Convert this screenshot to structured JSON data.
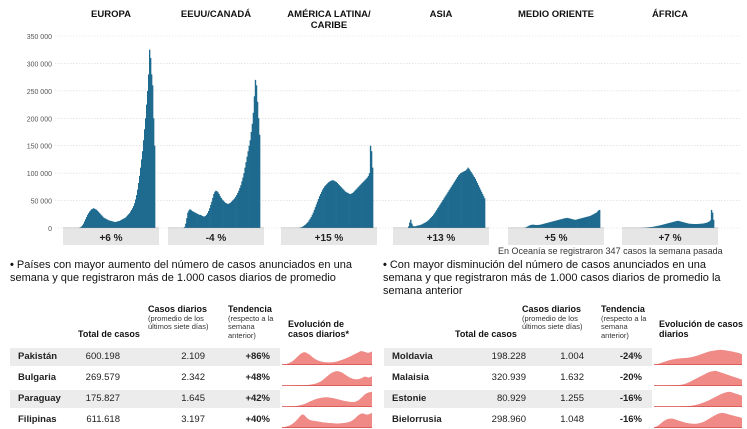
{
  "colors": {
    "region_bars": "#1f6a8f",
    "region_bg": "#f1f1f1",
    "pct_box": "#e6e6e6",
    "spark_fill": "#ef8a87",
    "spark_line": "#d94d4a",
    "row_alt": "#ececec"
  },
  "chart_data": {
    "type": "bar",
    "title": "",
    "ylim": [
      0,
      350000
    ],
    "yticks": [
      0,
      50000,
      100000,
      150000,
      200000,
      250000,
      300000,
      350000
    ],
    "ytick_labels": [
      "0",
      "50 000",
      "100 000",
      "150 000",
      "200 000",
      "250 000",
      "300 000",
      "350 000"
    ],
    "grid": true,
    "series": [
      {
        "name": "EUROPA",
        "change": "+6 %",
        "values": [
          0,
          200,
          600,
          1500,
          3000,
          5000,
          8000,
          12000,
          16000,
          20000,
          24000,
          27000,
          30000,
          32000,
          34000,
          35000,
          36000,
          35000,
          34000,
          33000,
          31000,
          29000,
          27000,
          25000,
          23000,
          21000,
          19000,
          18000,
          17000,
          16000,
          15000,
          14000,
          13500,
          13000,
          12500,
          12000,
          11500,
          11000,
          11000,
          11500,
          12000,
          12500,
          13000,
          14000,
          15000,
          16000,
          17000,
          18000,
          19000,
          21000,
          23000,
          25000,
          27000,
          30000,
          33000,
          36000,
          40000,
          45000,
          52000,
          60000,
          70000,
          82000,
          95000,
          110000,
          125000,
          140000,
          160000,
          180000,
          200000,
          225000,
          250000,
          280000,
          325000,
          310000,
          280000,
          260000,
          200000,
          150000
        ]
      },
      {
        "name": "EEUU/CANADÁ",
        "change": "-4 %",
        "values": [
          0,
          500,
          2000,
          8000,
          18000,
          28000,
          32000,
          34000,
          33000,
          31000,
          30000,
          29000,
          28000,
          27000,
          26000,
          25000,
          24000,
          24000,
          23000,
          22000,
          21000,
          21000,
          22000,
          24000,
          27000,
          31000,
          36000,
          42000,
          48000,
          55000,
          62000,
          66000,
          68000,
          67000,
          65000,
          62000,
          58000,
          55000,
          52000,
          50000,
          48000,
          46000,
          45000,
          44000,
          44000,
          45000,
          46000,
          48000,
          50000,
          52000,
          54000,
          57000,
          60000,
          64000,
          68000,
          73000,
          78000,
          85000,
          92000,
          100000,
          110000,
          120000,
          130000,
          140000,
          150000,
          160000,
          175000,
          190000,
          210000,
          240000,
          270000,
          260000,
          230000,
          200000,
          170000
        ]
      },
      {
        "name": "AMÉRICA LATINA/ CARIBE",
        "change": "+15 %",
        "values": [
          0,
          0,
          100,
          300,
          600,
          1000,
          1800,
          2800,
          4000,
          5500,
          7000,
          9000,
          11000,
          14000,
          17000,
          20000,
          24000,
          28000,
          33000,
          38000,
          43000,
          48000,
          53000,
          58000,
          62000,
          66000,
          70000,
          73000,
          76000,
          78000,
          80000,
          82000,
          84000,
          85000,
          86000,
          87000,
          87000,
          86000,
          85000,
          84000,
          82000,
          80000,
          78000,
          76000,
          74000,
          72000,
          70000,
          68000,
          66000,
          65000,
          64000,
          63000,
          62000,
          62000,
          63000,
          64000,
          66000,
          68000,
          70000,
          72000,
          74000,
          76000,
          78000,
          80000,
          82000,
          84000,
          86000,
          88000,
          90000,
          92000,
          95000,
          100000,
          150000,
          140000,
          110000
        ]
      },
      {
        "name": "ASIA",
        "change": "+13 %",
        "values": [
          0,
          3000,
          10000,
          15000,
          8000,
          4000,
          3000,
          3000,
          3500,
          4000,
          4500,
          5000,
          5500,
          6000,
          7000,
          8000,
          9000,
          10000,
          11000,
          12500,
          14000,
          16000,
          18000,
          20000,
          22000,
          24500,
          27000,
          30000,
          33000,
          36000,
          39000,
          42000,
          45000,
          48000,
          51000,
          54000,
          57000,
          60000,
          63000,
          66000,
          69000,
          72000,
          75000,
          78000,
          81000,
          84000,
          87000,
          90000,
          93000,
          96000,
          98000,
          100000,
          101000,
          102000,
          103000,
          104000,
          105000,
          107000,
          110000,
          108000,
          105000,
          102000,
          99000,
          96000,
          93000,
          90000,
          86000,
          82000,
          78000,
          74000,
          70000,
          66000,
          62000,
          58000,
          54000
        ]
      },
      {
        "name": "MEDIO ORIENTE",
        "change": "+5 %",
        "values": [
          0,
          200,
          500,
          1000,
          2000,
          3000,
          4000,
          5000,
          5500,
          6000,
          6000,
          5800,
          5600,
          5500,
          5500,
          5600,
          5800,
          6000,
          6500,
          7000,
          7500,
          8000,
          8500,
          9000,
          9500,
          10000,
          10500,
          11000,
          11500,
          12000,
          12500,
          13000,
          13500,
          14000,
          14500,
          15000,
          15500,
          16000,
          16500,
          17000,
          17500,
          18000,
          18000,
          18500,
          18000,
          17500,
          17000,
          16500,
          16000,
          15500,
          15000,
          15000,
          15500,
          16000,
          16500,
          17000,
          17500,
          18000,
          18500,
          19000,
          19500,
          20000,
          20500,
          21000,
          21500,
          22000,
          23000,
          24000,
          25000,
          26000,
          27000,
          28000,
          30000,
          32000,
          33000
        ]
      },
      {
        "name": "ÁFRICA",
        "change": "+7 %",
        "values": [
          0,
          0,
          50,
          100,
          200,
          300,
          400,
          500,
          600,
          800,
          1000,
          1200,
          1400,
          1600,
          1800,
          2000,
          2300,
          2600,
          3000,
          3400,
          3800,
          4200,
          4600,
          5000,
          5500,
          6000,
          6500,
          7000,
          7500,
          8000,
          8500,
          9000,
          9500,
          10000,
          10500,
          11000,
          11500,
          12000,
          12500,
          13000,
          13000,
          12500,
          12000,
          11500,
          11000,
          10500,
          10000,
          9500,
          9000,
          8500,
          8000,
          7800,
          7600,
          7500,
          7400,
          7300,
          7200,
          7200,
          7300,
          7400,
          7500,
          7600,
          7800,
          8000,
          8200,
          8500,
          9000,
          9500,
          10000,
          11000,
          12000,
          14000,
          33000,
          28000,
          15000
        ]
      }
    ]
  },
  "oceania_note": "En Oceanía se registraron 347 casos la semana pasada",
  "left_table": {
    "title": "Países con mayor aumento del número de casos anunciados en una semana y que registraron más de 1.000 casos diarios de promedio",
    "bullet": "•",
    "h_total": "Total de casos",
    "h_daily": "Casos diarios",
    "h_daily_sub": "(promedio de los últimos siete días)",
    "h_trend": "Tendencia",
    "h_trend_sub": "(respecto a la semana anterior)",
    "h_evol": "Evolución de casos diarios*",
    "rows": [
      {
        "country": "Pakistán",
        "total": "600.198",
        "daily": "2.109",
        "trend": "+86%",
        "spark": [
          2,
          3,
          5,
          9,
          14,
          20,
          28,
          38,
          50,
          62,
          72,
          80,
          85,
          82,
          76,
          68,
          58,
          48,
          40,
          33,
          28,
          24,
          21,
          19,
          18,
          17,
          17,
          18,
          19,
          21,
          24,
          27,
          31,
          35,
          40,
          45,
          50,
          56,
          62,
          68,
          74,
          80,
          86,
          92,
          90,
          86,
          82,
          80,
          84,
          90
        ]
      },
      {
        "country": "Bulgaria",
        "total": "269.579",
        "daily": "2.342",
        "trend": "+48%",
        "spark": [
          1,
          1,
          1,
          2,
          2,
          2,
          3,
          3,
          3,
          4,
          4,
          5,
          5,
          6,
          7,
          8,
          10,
          12,
          15,
          19,
          24,
          30,
          38,
          48,
          58,
          68,
          78,
          86,
          92,
          96,
          98,
          96,
          92,
          86,
          78,
          70,
          62,
          55,
          50,
          46,
          44,
          44,
          46,
          50,
          56,
          62,
          60,
          55,
          58,
          64
        ]
      },
      {
        "country": "Paraguay",
        "total": "175.827",
        "daily": "1.645",
        "trend": "+42%",
        "spark": [
          1,
          1,
          1,
          2,
          2,
          3,
          4,
          5,
          7,
          9,
          12,
          15,
          19,
          24,
          29,
          35,
          40,
          45,
          50,
          54,
          57,
          60,
          62,
          63,
          64,
          63,
          62,
          60,
          58,
          55,
          52,
          49,
          46,
          43,
          40,
          38,
          36,
          34,
          33,
          33,
          35,
          40,
          48,
          58,
          70,
          82,
          90,
          95,
          98,
          100
        ]
      },
      {
        "country": "Filipinas",
        "total": "611.618",
        "daily": "3.197",
        "trend": "+40%",
        "spark": [
          3,
          5,
          8,
          12,
          16,
          22,
          30,
          40,
          52,
          66,
          80,
          90,
          86,
          74,
          62,
          54,
          50,
          48,
          46,
          44,
          42,
          40,
          38,
          36,
          35,
          34,
          33,
          32,
          31,
          30,
          30,
          30,
          31,
          32,
          33,
          35,
          38,
          42,
          48,
          56,
          66,
          78,
          88,
          94,
          96,
          92,
          88,
          90,
          94,
          100
        ]
      }
    ]
  },
  "right_table": {
    "title": "Con mayor disminución del número de casos anunciados en una semana y que registraron más de 1.000 casos diarios de promedio la semana anterior",
    "bullet": "•",
    "h_total": "Total de casos",
    "h_daily": "Casos diarios",
    "h_daily_sub": "(promedio de los últimos siete días)",
    "h_trend": "Tendencia",
    "h_trend_sub": "(respecto a la semana anterior)",
    "h_evol": "Evolución de casos diarios",
    "rows": [
      {
        "country": "Moldavia",
        "total": "198.228",
        "daily": "1.004",
        "trend": "-24%",
        "spark": [
          2,
          4,
          7,
          10,
          14,
          18,
          22,
          26,
          30,
          33,
          36,
          38,
          40,
          42,
          43,
          44,
          45,
          46,
          47,
          48,
          50,
          52,
          55,
          58,
          62,
          66,
          70,
          74,
          78,
          82,
          86,
          90,
          92,
          94,
          96,
          98,
          99,
          100,
          99,
          98,
          96,
          94,
          92,
          90,
          88,
          85,
          82,
          80,
          76,
          70
        ]
      },
      {
        "country": "Malaisia",
        "total": "320.939",
        "daily": "1.632",
        "trend": "-20%",
        "spark": [
          1,
          1,
          1,
          1,
          1,
          2,
          2,
          2,
          2,
          3,
          3,
          3,
          4,
          5,
          6,
          8,
          10,
          13,
          17,
          22,
          28,
          34,
          40,
          46,
          52,
          58,
          64,
          70,
          76,
          82,
          88,
          93,
          96,
          98,
          100,
          98,
          94,
          90,
          86,
          82,
          78,
          74,
          70,
          66,
          62,
          58,
          54,
          50,
          46,
          42
        ]
      },
      {
        "country": "Estonie",
        "total": "80.929",
        "daily": "1.255",
        "trend": "-16%",
        "spark": [
          0,
          0,
          1,
          1,
          1,
          1,
          1,
          1,
          1,
          1,
          1,
          1,
          2,
          2,
          2,
          3,
          3,
          4,
          5,
          6,
          7,
          9,
          11,
          13,
          16,
          19,
          23,
          27,
          31,
          36,
          41,
          47,
          53,
          59,
          65,
          71,
          77,
          83,
          88,
          92,
          96,
          99,
          100,
          98,
          94,
          90,
          86,
          82,
          78,
          74
        ]
      },
      {
        "country": "Bielorrusia",
        "total": "298.960",
        "daily": "1.048",
        "trend": "-16%",
        "spark": [
          4,
          8,
          14,
          22,
          32,
          42,
          50,
          56,
          60,
          62,
          62,
          60,
          56,
          52,
          48,
          44,
          40,
          37,
          34,
          32,
          30,
          29,
          28,
          28,
          29,
          31,
          34,
          38,
          43,
          49,
          56,
          63,
          70,
          77,
          84,
          90,
          95,
          98,
          100,
          98,
          95,
          92,
          88,
          85,
          82,
          79,
          76,
          73,
          70,
          67
        ]
      }
    ]
  }
}
